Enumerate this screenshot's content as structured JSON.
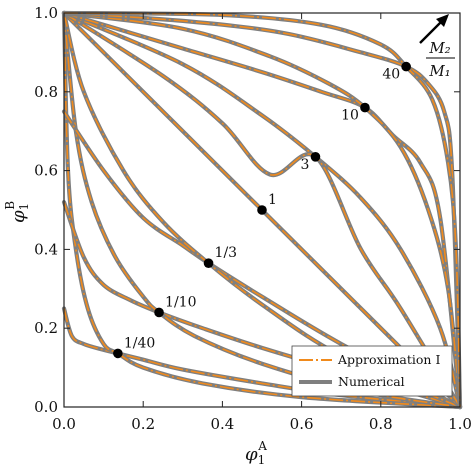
{
  "chart_data": {
    "type": "line",
    "xlabel": {
      "base": "φ",
      "sup": "A",
      "sub": "1"
    },
    "ylabel": {
      "base": "φ",
      "sup": "B",
      "sub": "1"
    },
    "xlim": [
      0,
      1
    ],
    "ylim": [
      0,
      1
    ],
    "xticks": [
      "0.0",
      "0.2",
      "0.4",
      "0.6",
      "0.8",
      "1.0"
    ],
    "yticks": [
      "0.0",
      "0.2",
      "0.4",
      "0.6",
      "0.8",
      "1.0"
    ],
    "ratio_annotation": {
      "numerator": "M₂",
      "denominator": "M₁"
    },
    "legend": {
      "position": "bottom-right",
      "entries": [
        {
          "name": "Approximation I",
          "color": "#f08a1c",
          "style": "dash-dot"
        },
        {
          "name": "Numerical",
          "color": "#7f7f7f",
          "style": "solid"
        }
      ]
    },
    "colors": {
      "approximation": "#f08a1c",
      "numerical": "#7f7f7f",
      "marker": "#000000"
    },
    "families": [
      {
        "label": "1/40",
        "marker": [
          0.136,
          0.136
        ],
        "curves": [
          {
            "x": [
              0.0,
              0.02,
              0.05,
              0.1,
              0.136,
              0.2,
              0.3,
              0.5,
              0.7,
              1.0
            ],
            "y": [
              0.25,
              0.18,
              0.16,
              0.145,
              0.136,
              0.12,
              0.095,
              0.06,
              0.03,
              0.0
            ]
          },
          {
            "x": [
              0.0,
              0.01,
              0.03,
              0.06,
              0.1,
              0.136,
              0.2,
              0.35,
              0.6,
              1.0
            ],
            "y": [
              1.0,
              0.6,
              0.4,
              0.25,
              0.16,
              0.136,
              0.1,
              0.06,
              0.025,
              0.0
            ]
          }
        ]
      },
      {
        "label": "1/10",
        "marker": [
          0.24,
          0.24
        ],
        "curves": [
          {
            "x": [
              0.0,
              0.05,
              0.1,
              0.17,
              0.24,
              0.35,
              0.5,
              0.7,
              1.0
            ],
            "y": [
              0.52,
              0.38,
              0.31,
              0.27,
              0.24,
              0.2,
              0.15,
              0.09,
              0.0
            ]
          },
          {
            "x": [
              0.0,
              0.03,
              0.07,
              0.13,
              0.2,
              0.24,
              0.33,
              0.5,
              0.75,
              1.0
            ],
            "y": [
              1.0,
              0.7,
              0.52,
              0.38,
              0.28,
              0.24,
              0.18,
              0.11,
              0.04,
              0.0
            ]
          }
        ]
      },
      {
        "label": "1/3",
        "marker": [
          0.365,
          0.365
        ],
        "curves": [
          {
            "x": [
              0.0,
              0.1,
              0.2,
              0.3,
              0.365,
              0.5,
              0.7,
              1.0
            ],
            "y": [
              0.75,
              0.6,
              0.48,
              0.41,
              0.365,
              0.28,
              0.16,
              0.0
            ]
          },
          {
            "x": [
              0.0,
              0.05,
              0.15,
              0.25,
              0.365,
              0.5,
              0.7,
              1.0
            ],
            "y": [
              1.0,
              0.8,
              0.6,
              0.47,
              0.365,
              0.26,
              0.13,
              0.0
            ]
          }
        ]
      },
      {
        "label": "1",
        "marker": [
          0.5,
          0.5
        ],
        "curves": [
          {
            "x": [
              0.0,
              1.0
            ],
            "y": [
              1.0,
              0.0
            ]
          }
        ]
      },
      {
        "label": "3",
        "marker": [
          0.635,
          0.635
        ],
        "curves": [
          {
            "x": [
              0.0,
              0.3,
              0.5,
              0.635,
              0.75,
              0.85,
              0.95,
              1.0
            ],
            "y": [
              1.0,
              0.87,
              0.74,
              0.635,
              0.53,
              0.4,
              0.2,
              0.0
            ]
          },
          {
            "x": [
              0.0,
              0.25,
              0.4,
              0.52,
              0.635,
              0.75,
              0.85,
              1.0
            ],
            "y": [
              1.0,
              0.84,
              0.72,
              0.59,
              0.635,
              0.4,
              0.25,
              0.0
            ]
          }
        ]
      },
      {
        "label": "10",
        "marker": [
          0.76,
          0.76
        ],
        "curves": [
          {
            "x": [
              0.0,
              0.3,
              0.5,
              0.65,
              0.76,
              0.83,
              0.9,
              0.95,
              1.0
            ],
            "y": [
              1.0,
              0.91,
              0.85,
              0.8,
              0.76,
              0.69,
              0.62,
              0.48,
              0.0
            ]
          },
          {
            "x": [
              0.0,
              0.3,
              0.52,
              0.67,
              0.76,
              0.85,
              0.92,
              0.97,
              1.0
            ],
            "y": [
              1.0,
              0.96,
              0.89,
              0.82,
              0.76,
              0.66,
              0.5,
              0.3,
              0.0
            ]
          }
        ]
      },
      {
        "label": "40",
        "marker": [
          0.864,
          0.864
        ],
        "curves": [
          {
            "x": [
              0.0,
              0.3,
              0.55,
              0.75,
              0.864,
              0.92,
              0.96,
              0.98,
              1.0
            ],
            "y": [
              1.0,
              0.98,
              0.95,
              0.9,
              0.864,
              0.82,
              0.75,
              0.6,
              0.0
            ]
          },
          {
            "x": [
              0.0,
              0.4,
              0.65,
              0.8,
              0.864,
              0.93,
              0.97,
              0.99,
              1.0
            ],
            "y": [
              1.0,
              0.995,
              0.97,
              0.92,
              0.864,
              0.78,
              0.62,
              0.4,
              0.0
            ]
          }
        ]
      }
    ]
  }
}
